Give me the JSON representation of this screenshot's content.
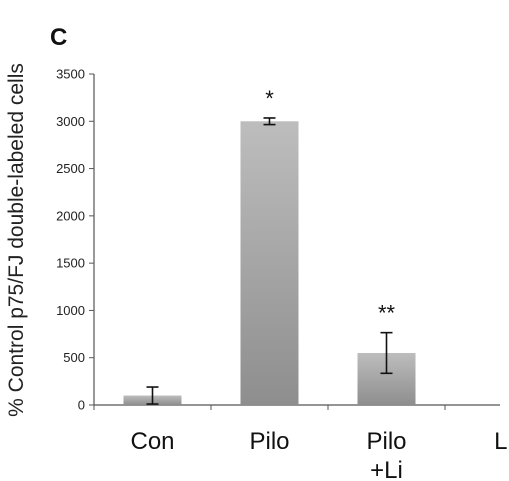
{
  "panel_label": "C",
  "chart_data": {
    "type": "bar",
    "ylabel": "% Control p75/FJ double-labeled cells",
    "xlabel": "",
    "categories": [
      {
        "line1": "Con",
        "line2": ""
      },
      {
        "line1": "Pilo",
        "line2": ""
      },
      {
        "line1": "Pilo",
        "line2": "+Li"
      },
      {
        "line1": "Li",
        "line2": ""
      }
    ],
    "values": [
      100,
      3000,
      550,
      0
    ],
    "errors": [
      90,
      35,
      215,
      0
    ],
    "annotations": [
      "",
      "*",
      "**",
      ""
    ],
    "ylim": [
      0,
      3500
    ],
    "yticks": [
      0,
      500,
      1000,
      1500,
      2000,
      2500,
      3000,
      3500
    ],
    "grid": false,
    "bar_color": "#a0a0a0"
  }
}
